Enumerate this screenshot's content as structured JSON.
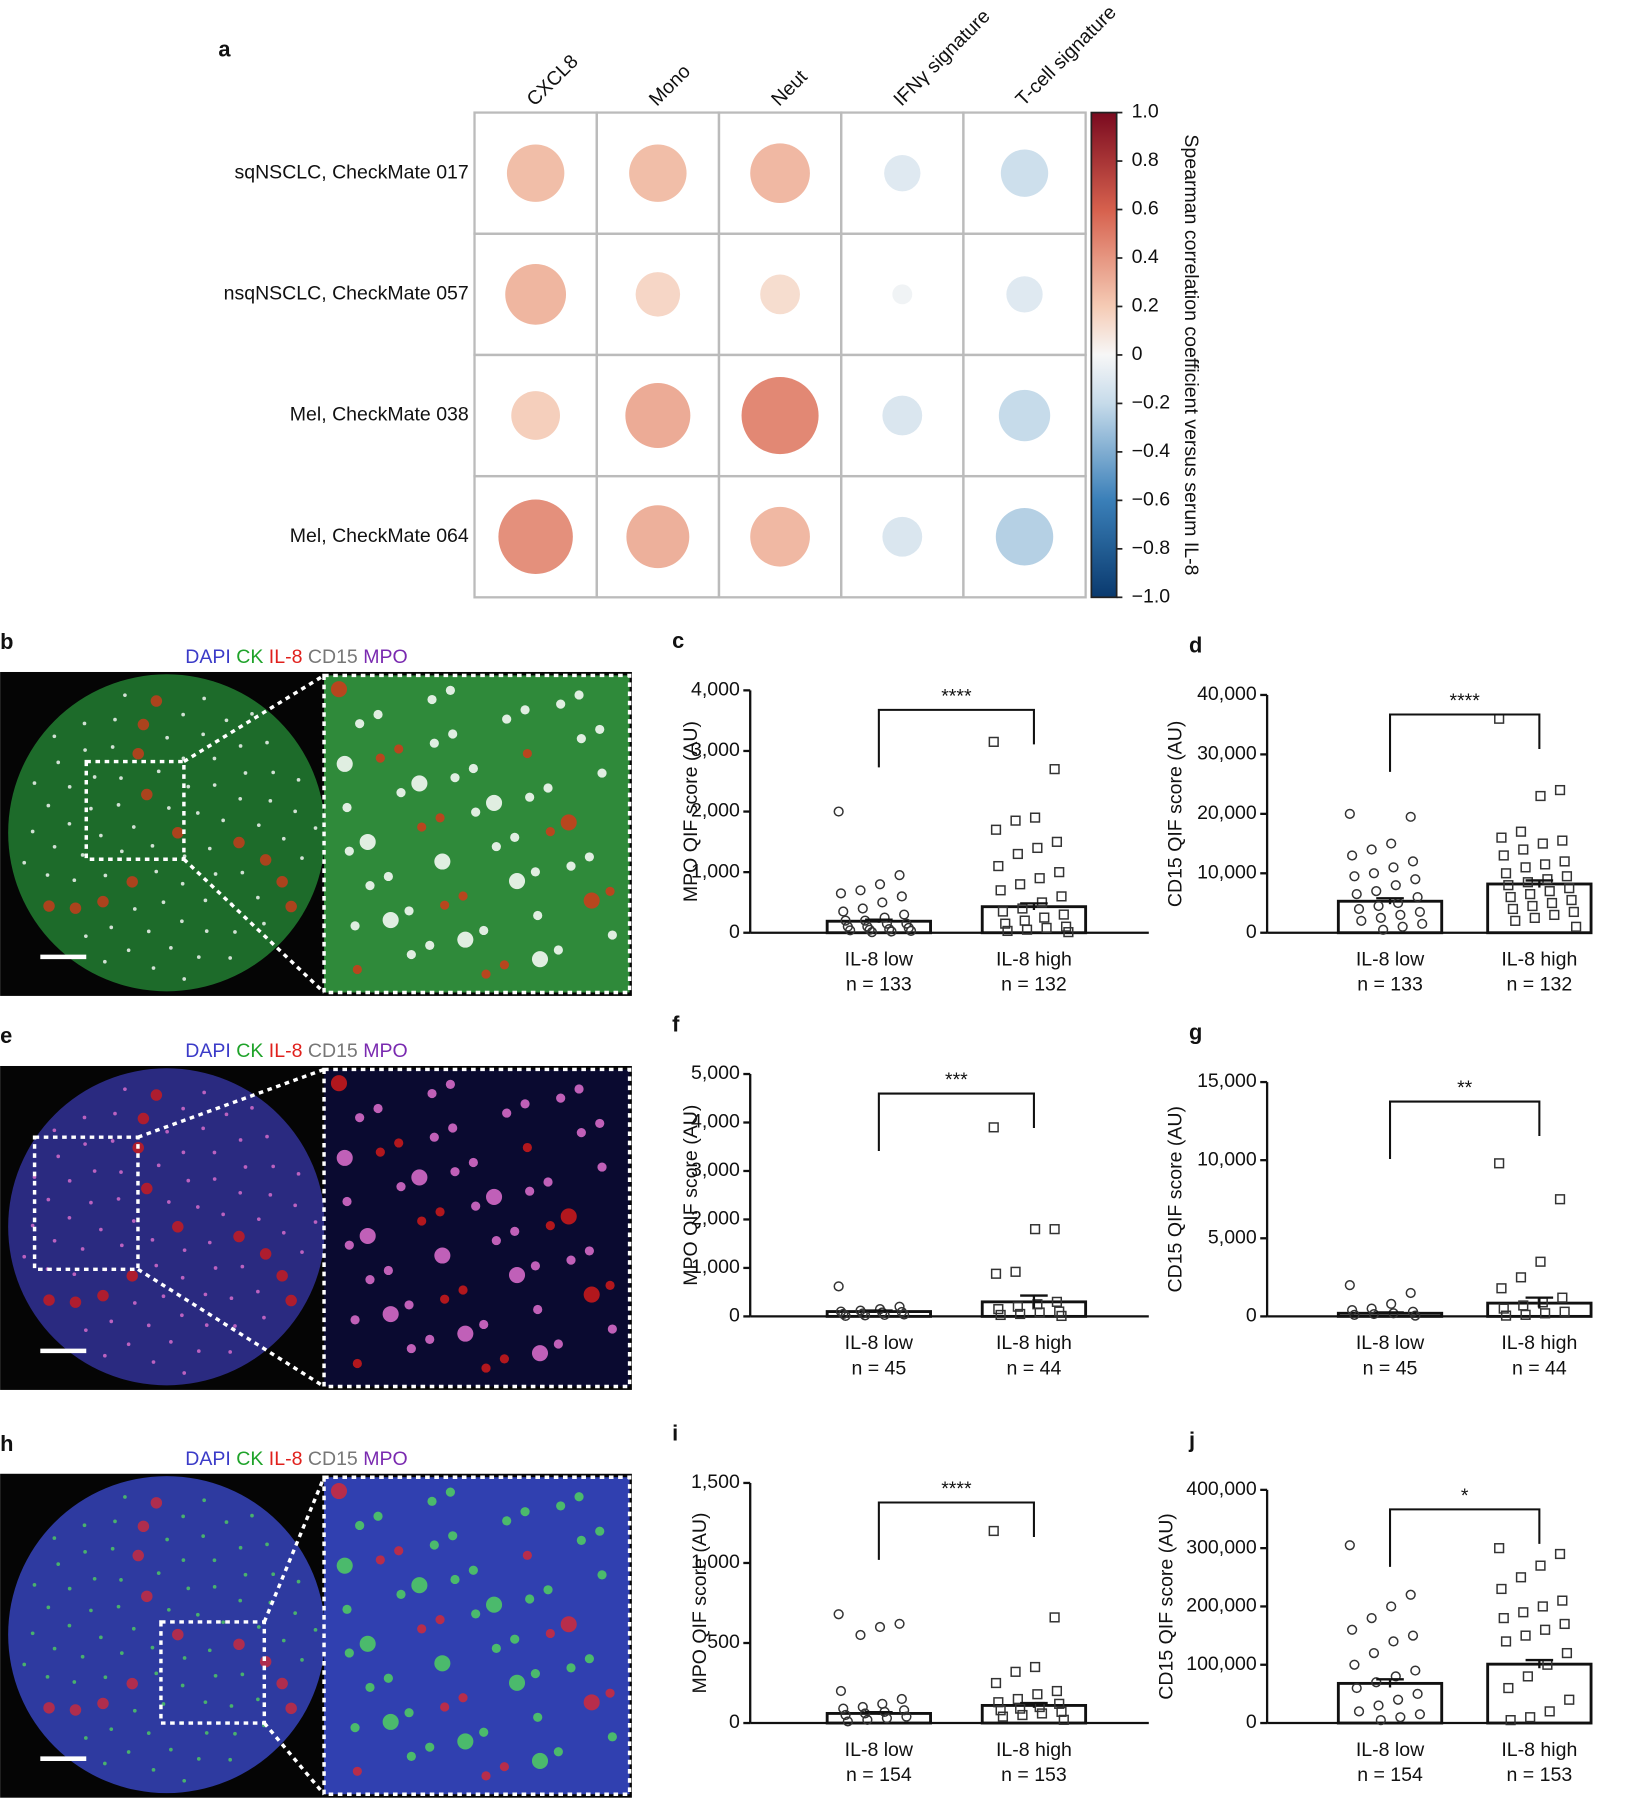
{
  "images": [
    {
      "label": "b",
      "stains": [
        {
          "name": "DAPI",
          "color": "#3b3bc8"
        },
        {
          "name": "CK",
          "color": "#1fa32a"
        },
        {
          "name": "IL-8",
          "color": "#e0201c"
        },
        {
          "name": "CD15",
          "color": "#777777"
        },
        {
          "name": "MPO",
          "color": "#7a2ab0"
        }
      ]
    },
    {
      "label": "e",
      "stains": [
        {
          "name": "DAPI",
          "color": "#3b3bc8"
        },
        {
          "name": "CK",
          "color": "#1fa32a"
        },
        {
          "name": "IL-8",
          "color": "#e0201c"
        },
        {
          "name": "CD15",
          "color": "#777777"
        },
        {
          "name": "MPO",
          "color": "#7a2ab0"
        }
      ]
    },
    {
      "label": "h",
      "stains": [
        {
          "name": "DAPI",
          "color": "#3b3bc8"
        },
        {
          "name": "CK",
          "color": "#1fa32a"
        },
        {
          "name": "IL-8",
          "color": "#e0201c"
        },
        {
          "name": "CD15",
          "color": "#777777"
        },
        {
          "name": "MPO",
          "color": "#7a2ab0"
        }
      ]
    }
  ],
  "chart_data": [
    {
      "type": "heatmap",
      "label": "a",
      "columns": [
        "CXCL8",
        "Mono",
        "Neut",
        "IFNγ signature",
        "T-cell signature"
      ],
      "rows": [
        "sqNSCLC, CheckMate 017",
        "nsqNSCLC, CheckMate 057",
        "Mel, CheckMate 038",
        "Mel, CheckMate 064"
      ],
      "values": [
        [
          0.25,
          0.25,
          0.27,
          -0.1,
          -0.17
        ],
        [
          0.28,
          0.15,
          0.12,
          -0.03,
          -0.1
        ],
        [
          0.18,
          0.32,
          0.45,
          -0.12,
          -0.2
        ],
        [
          0.42,
          0.3,
          0.27,
          -0.12,
          -0.25
        ]
      ],
      "colorbar_label": "Spearman correlation coefficient versus serum IL-8",
      "clim": [
        -1,
        1
      ],
      "cticks": [
        {
          "value": 1,
          "label": "1.0"
        },
        0.8,
        0.6,
        0.4,
        0.2,
        0,
        {
          "value": -0.2,
          "label": "−0.2"
        },
        {
          "value": -0.4,
          "label": "−0.4"
        },
        {
          "value": -0.6,
          "label": "−0.6"
        },
        {
          "value": -0.8,
          "label": "−0.8"
        },
        {
          "value": -1,
          "label": "−1.0"
        }
      ]
    },
    {
      "type": "bar",
      "label": "c",
      "ylabel": "MPO QIF score (AU)",
      "categories": [
        "IL-8 low",
        "IL-8 high"
      ],
      "n_labels": [
        "n = 133",
        "n = 132"
      ],
      "significance": "****",
      "markers": [
        "circle",
        "square"
      ],
      "values": [
        190,
        430
      ],
      "errors": [
        25,
        55
      ],
      "points": [
        [
          2000,
          950,
          800,
          700,
          650,
          600,
          500,
          400,
          350,
          300,
          250,
          200,
          200,
          150,
          150,
          100,
          100,
          80,
          60,
          50,
          40,
          30,
          20,
          10
        ],
        [
          3150,
          2700,
          1900,
          1850,
          1700,
          1500,
          1400,
          1300,
          1100,
          1000,
          900,
          800,
          700,
          600,
          500,
          400,
          350,
          300,
          250,
          200,
          150,
          100,
          80,
          50,
          30,
          10
        ]
      ],
      "ylim": [
        0,
        4000
      ],
      "yticks": [
        0,
        {
          "value": 1000,
          "label": "1,000"
        },
        {
          "value": 2000,
          "label": "2,000"
        },
        {
          "value": 3000,
          "label": "3,000"
        },
        {
          "value": 4000,
          "label": "4,000"
        }
      ]
    },
    {
      "type": "bar",
      "label": "d",
      "ylabel": "CD15 QIF score (AU)",
      "categories": [
        "IL-8 low",
        "IL-8 high"
      ],
      "n_labels": [
        "n = 133",
        "n = 132"
      ],
      "significance": "****",
      "markers": [
        "circle",
        "square"
      ],
      "values": [
        5300,
        8200
      ],
      "errors": [
        500,
        600
      ],
      "points": [
        [
          20000,
          19500,
          15000,
          14000,
          13000,
          12000,
          11000,
          10000,
          9500,
          9000,
          8000,
          7000,
          6500,
          6000,
          5000,
          4500,
          4000,
          3500,
          3000,
          2500,
          2000,
          1500,
          1000,
          500
        ],
        [
          36000,
          24000,
          23000,
          17000,
          16000,
          15500,
          15000,
          14000,
          13000,
          12000,
          11500,
          11000,
          10000,
          9500,
          9000,
          8500,
          8000,
          7500,
          7000,
          6500,
          6000,
          5500,
          5000,
          4500,
          4000,
          3500,
          3000,
          2500,
          2000,
          1000
        ]
      ],
      "ylim": [
        0,
        40000
      ],
      "yticks": [
        0,
        {
          "value": 10000,
          "label": "10,000"
        },
        {
          "value": 20000,
          "label": "20,000"
        },
        {
          "value": 30000,
          "label": "30,000"
        },
        {
          "value": 40000,
          "label": "40,000"
        }
      ]
    },
    {
      "type": "bar",
      "label": "f",
      "ylabel": "MPO QIF score (AU)",
      "categories": [
        "IL-8 low",
        "IL-8 high"
      ],
      "n_labels": [
        "n = 45",
        "n = 44"
      ],
      "significance": "***",
      "markers": [
        "circle",
        "square"
      ],
      "values": [
        100,
        300
      ],
      "errors": [
        20,
        130
      ],
      "points": [
        [
          620,
          200,
          150,
          120,
          100,
          90,
          80,
          60,
          50,
          40,
          30,
          20,
          10
        ],
        [
          3900,
          1800,
          1800,
          920,
          880,
          300,
          250,
          200,
          150,
          100,
          80,
          50,
          30,
          10
        ]
      ],
      "ylim": [
        0,
        5000
      ],
      "yticks": [
        0,
        {
          "value": 1000,
          "label": "1,000"
        },
        {
          "value": 2000,
          "label": "2,000"
        },
        {
          "value": 3000,
          "label": "3,000"
        },
        {
          "value": 4000,
          "label": "4,000"
        },
        {
          "value": 5000,
          "label": "5,000"
        }
      ]
    },
    {
      "type": "bar",
      "label": "g",
      "ylabel": "CD15 QIF score (AU)",
      "categories": [
        "IL-8 low",
        "IL-8 high"
      ],
      "n_labels": [
        "n = 45",
        "n = 44"
      ],
      "significance": "**",
      "markers": [
        "circle",
        "square"
      ],
      "values": [
        200,
        850
      ],
      "errors": [
        60,
        350
      ],
      "points": [
        [
          2000,
          1500,
          800,
          500,
          400,
          300,
          200,
          150,
          100,
          50
        ],
        [
          9800,
          7500,
          3500,
          2500,
          1800,
          1200,
          900,
          700,
          500,
          300,
          200,
          100,
          50
        ]
      ],
      "ylim": [
        0,
        15000
      ],
      "yticks": [
        0,
        {
          "value": 5000,
          "label": "5,000"
        },
        {
          "value": 10000,
          "label": "10,000"
        },
        {
          "value": 15000,
          "label": "15,000"
        }
      ]
    },
    {
      "type": "bar",
      "label": "i",
      "ylabel": "MPO QIF score (AU)",
      "categories": [
        "IL-8 low",
        "IL-8 high"
      ],
      "n_labels": [
        "n = 154",
        "n = 153"
      ],
      "significance": "****",
      "markers": [
        "circle",
        "square"
      ],
      "values": [
        60,
        110
      ],
      "errors": [
        8,
        15
      ],
      "points": [
        [
          680,
          620,
          600,
          550,
          200,
          150,
          120,
          100,
          90,
          80,
          70,
          60,
          50,
          40,
          30,
          20,
          10
        ],
        [
          1200,
          660,
          350,
          320,
          250,
          200,
          180,
          150,
          130,
          120,
          100,
          90,
          80,
          70,
          60,
          50,
          40,
          20
        ]
      ],
      "ylim": [
        0,
        1500
      ],
      "yticks": [
        0,
        500,
        {
          "value": 1000,
          "label": "1,000"
        },
        {
          "value": 1500,
          "label": "1,500"
        }
      ]
    },
    {
      "type": "bar",
      "label": "j",
      "ylabel": "CD15 QIF score (AU)",
      "categories": [
        "IL-8 low",
        "IL-8 high"
      ],
      "n_labels": [
        "n = 154",
        "n = 153"
      ],
      "significance": "*",
      "markers": [
        "circle",
        "square"
      ],
      "values": [
        68000,
        101000
      ],
      "errors": [
        7000,
        7000
      ],
      "points": [
        [
          305000,
          220000,
          200000,
          180000,
          160000,
          150000,
          140000,
          120000,
          100000,
          90000,
          80000,
          70000,
          60000,
          50000,
          40000,
          30000,
          20000,
          15000,
          10000,
          5000
        ],
        [
          300000,
          290000,
          270000,
          250000,
          230000,
          210000,
          200000,
          190000,
          180000,
          170000,
          160000,
          150000,
          140000,
          120000,
          100000,
          80000,
          60000,
          40000,
          20000,
          10000,
          5000
        ]
      ],
      "ylim": [
        0,
        400000
      ],
      "yticks": [
        0,
        {
          "value": 100000,
          "label": "100,000"
        },
        {
          "value": 200000,
          "label": "200,000"
        },
        {
          "value": 300000,
          "label": "300,000"
        },
        {
          "value": 400000,
          "label": "400,000"
        }
      ]
    }
  ]
}
